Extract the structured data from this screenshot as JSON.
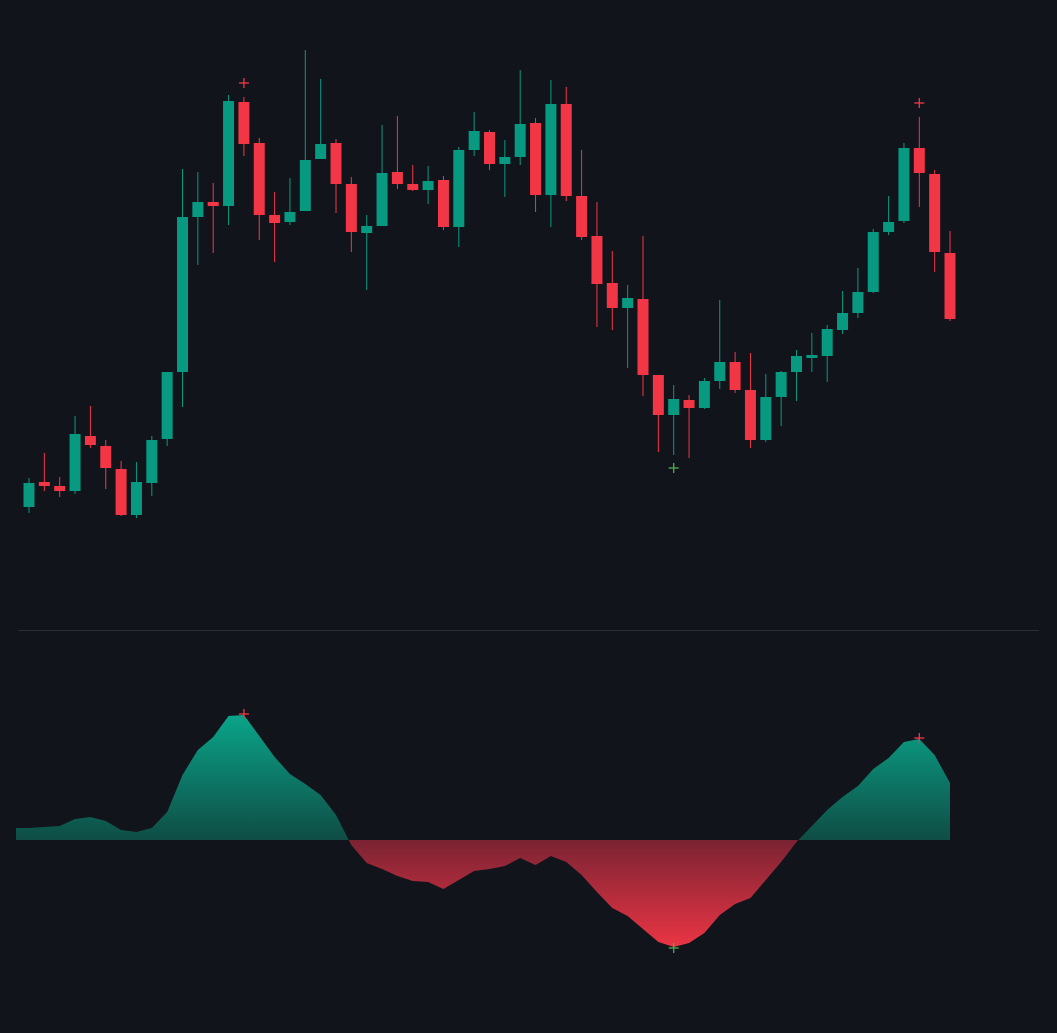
{
  "chart_data": [
    {
      "type": "candlestick",
      "up_color": "#089981",
      "down_color": "#f23645",
      "ylim": [
        0,
        600
      ],
      "open": [
        93,
        118,
        114,
        109,
        164,
        154,
        131,
        85,
        117,
        161,
        228,
        383,
        398,
        394,
        498,
        457,
        385,
        378,
        389,
        441,
        457,
        416,
        367,
        374,
        428,
        416,
        410,
        420,
        373,
        450,
        468,
        436,
        443,
        477,
        405,
        496,
        404,
        364,
        317,
        292,
        301,
        225,
        185,
        200,
        192,
        219,
        238,
        210,
        160,
        203,
        228,
        242,
        244,
        270,
        287,
        308,
        368,
        379,
        452,
        426,
        347
      ],
      "high": [
        122,
        147,
        123,
        184,
        194,
        160,
        139,
        138,
        164,
        228,
        431,
        428,
        417,
        505,
        503,
        462,
        408,
        422,
        550,
        521,
        461,
        423,
        385,
        475,
        484,
        435,
        434,
        424,
        453,
        488,
        470,
        460,
        530,
        482,
        520,
        513,
        450,
        398,
        349,
        315,
        364,
        225,
        215,
        205,
        222,
        300,
        248,
        247,
        226,
        229,
        250,
        267,
        275,
        309,
        332,
        371,
        404,
        457,
        483,
        430,
        369
      ],
      "low": [
        87,
        109,
        103,
        106,
        152,
        111,
        84,
        82,
        104,
        154,
        193,
        335,
        347,
        375,
        444,
        360,
        338,
        375,
        389,
        441,
        387,
        348,
        310,
        374,
        411,
        409,
        396,
        370,
        353,
        444,
        430,
        403,
        435,
        388,
        373,
        399,
        360,
        273,
        270,
        232,
        204,
        148,
        145,
        142,
        191,
        211,
        207,
        152,
        158,
        174,
        199,
        228,
        218,
        266,
        282,
        307,
        365,
        377,
        393,
        328,
        279
      ],
      "close": [
        117,
        114,
        109,
        166,
        155,
        132,
        85,
        118,
        160,
        228,
        383,
        398,
        394,
        499,
        456,
        385,
        377,
        388,
        440,
        456,
        416,
        368,
        374,
        427,
        416,
        410,
        419,
        373,
        450,
        469,
        436,
        443,
        476,
        405,
        496,
        404,
        363,
        316,
        292,
        302,
        225,
        185,
        201,
        192,
        219,
        238,
        210,
        160,
        203,
        228,
        244,
        245,
        271,
        287,
        308,
        368,
        378,
        452,
        427,
        348,
        281
      ],
      "sell_signals": [
        14,
        58
      ],
      "buy_signals": [
        42
      ]
    },
    {
      "type": "area",
      "positive_color": "#089981",
      "negative_color": "#f23645",
      "ylim": [
        -190,
        190
      ],
      "values": [
        12,
        13,
        14,
        21,
        23,
        19,
        10,
        8,
        12,
        28,
        65,
        90,
        103,
        124,
        125,
        104,
        83,
        66,
        56,
        45,
        25,
        -5,
        -23,
        -29,
        -36,
        -41,
        -42,
        -49,
        -40,
        -31,
        -29,
        -26,
        -18,
        -25,
        -16,
        -22,
        -35,
        -52,
        -68,
        -76,
        -89,
        -102,
        -107,
        -103,
        -93,
        -75,
        -64,
        -58,
        -40,
        -22,
        -2,
        14,
        30,
        43,
        54,
        71,
        82,
        98,
        101,
        85,
        57
      ],
      "sell_signals": [
        14,
        58
      ],
      "buy_signals": [
        42
      ]
    }
  ]
}
